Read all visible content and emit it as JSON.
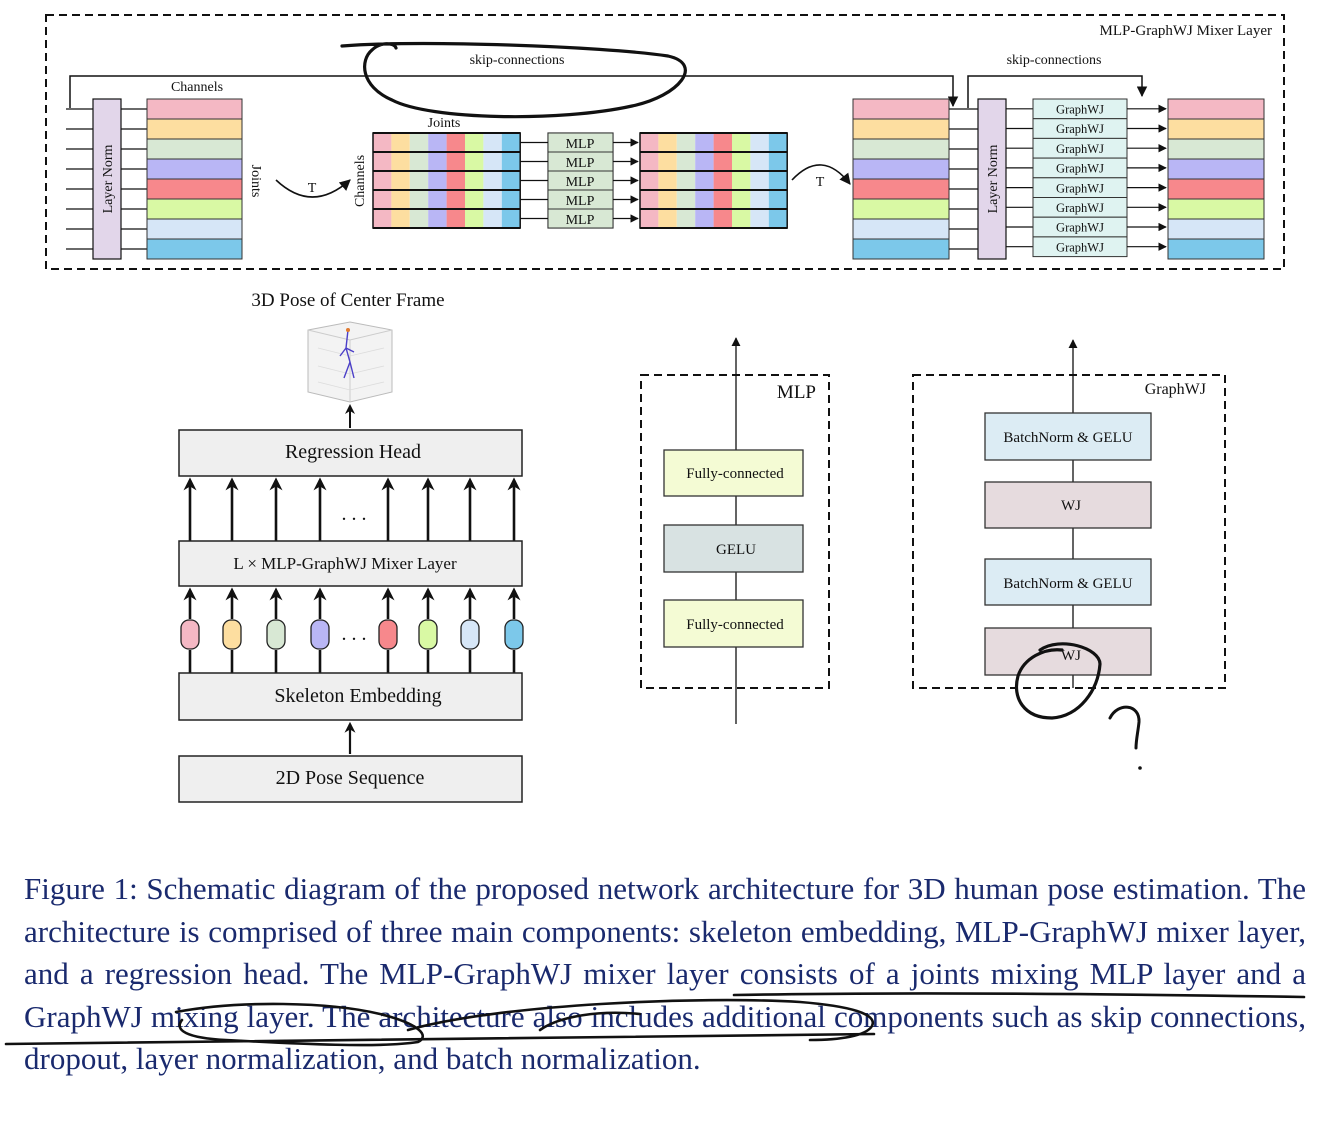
{
  "top_panel": {
    "title": "MLP-GraphWJ Mixer Layer",
    "skip_left": "skip-connections",
    "skip_right": "skip-connections",
    "channels_label": "Channels",
    "layer_norm": "Layer Norm",
    "joints_label": "Joints",
    "transpose": "T",
    "joints_top": "Joints",
    "channels_side": "Channels",
    "mlp_label": "MLP",
    "graphwj_label": "GraphWJ"
  },
  "pipeline": {
    "pose_title": "3D Pose of Center Frame",
    "regression_head": "Regression Head",
    "mixer_layer": "L × MLP-GraphWJ Mixer Layer",
    "skeleton_embedding": "Skeleton Embedding",
    "pose_sequence": "2D Pose Sequence",
    "ellipsis": ". . ."
  },
  "mlp_block": {
    "title": "MLP",
    "fc1": "Fully-connected",
    "gelu": "GELU",
    "fc2": "Fully-connected"
  },
  "graphwj_block": {
    "title": "GraphWJ",
    "bn1": "BatchNorm & GELU",
    "wj1": "WJ",
    "bn2": "BatchNorm & GELU",
    "wj2": "WJ"
  },
  "caption": {
    "text": "Figure 1: Schematic diagram of the proposed network architecture for 3D human pose estimation. The architecture is comprised of three main components: skeleton embedding, MLP-GraphWJ mixer layer, and a regression head. The MLP-GraphWJ mixer layer consists of a joints mixing MLP layer and a GraphWJ mixing layer. The architecture also includes additional components such as skip connections, dropout, layer normalization, and batch normalization."
  },
  "colors": {
    "channel_stripes": [
      "#f4b8c4",
      "#fddea0",
      "#d8e8d4",
      "#b9b6f5",
      "#f7888c",
      "#d9f9a4",
      "#d6e6f7",
      "#7cc8ea"
    ],
    "layer_norm_fill": "#e2d6ea",
    "mlp_fill": "#d8e8d4",
    "graphwj_fill": "#dff3f1",
    "box_fill": "#efefef",
    "fc_fill": "#f4fbd4",
    "gelu_fill": "#d8e2e2",
    "bn_fill": "#dcecf4",
    "wj_fill": "#e6dbde",
    "caption_text": "#1a2a6e"
  }
}
